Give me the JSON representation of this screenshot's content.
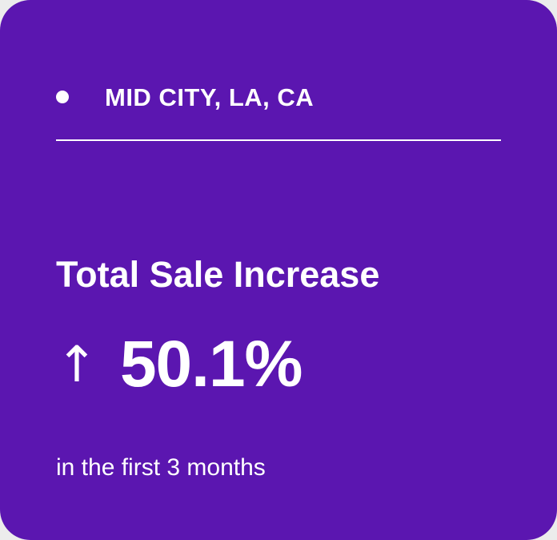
{
  "card": {
    "background_color": "#5b16b0",
    "text_color": "#ffffff",
    "location": {
      "icon": "bullet-dot",
      "label": "MID CITY, LA, CA"
    },
    "metric": {
      "title": "Total Sale Increase",
      "trend_icon": "arrow-up-icon",
      "arrow_glyph": "↑",
      "value": "50.1%",
      "note": "in the first 3 months"
    }
  }
}
